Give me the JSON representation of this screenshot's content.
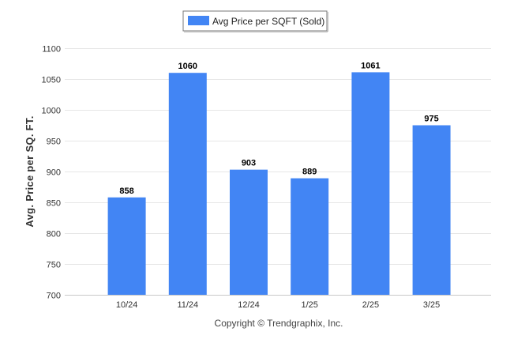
{
  "chart_data": {
    "type": "bar",
    "title": "",
    "xlabel": "",
    "ylabel": "Avg. Price per SQ. FT.",
    "categories": [
      "10/24",
      "11/24",
      "12/24",
      "1/25",
      "2/25",
      "3/25"
    ],
    "series": [
      {
        "name": "Avg Price per SQFT (Sold)",
        "values": [
          858,
          1060,
          903,
          889,
          1061,
          975
        ],
        "color": "#4285f4"
      }
    ],
    "data_labels": [
      "858",
      "1060",
      "903",
      "889",
      "1061",
      "975"
    ],
    "ylim": [
      700,
      1100
    ],
    "yticks": [
      700,
      750,
      800,
      850,
      900,
      950,
      1000,
      1050,
      1100
    ],
    "grid": true,
    "legend_position": "top-center"
  },
  "credit": "Copyright © Trendgraphix, Inc."
}
